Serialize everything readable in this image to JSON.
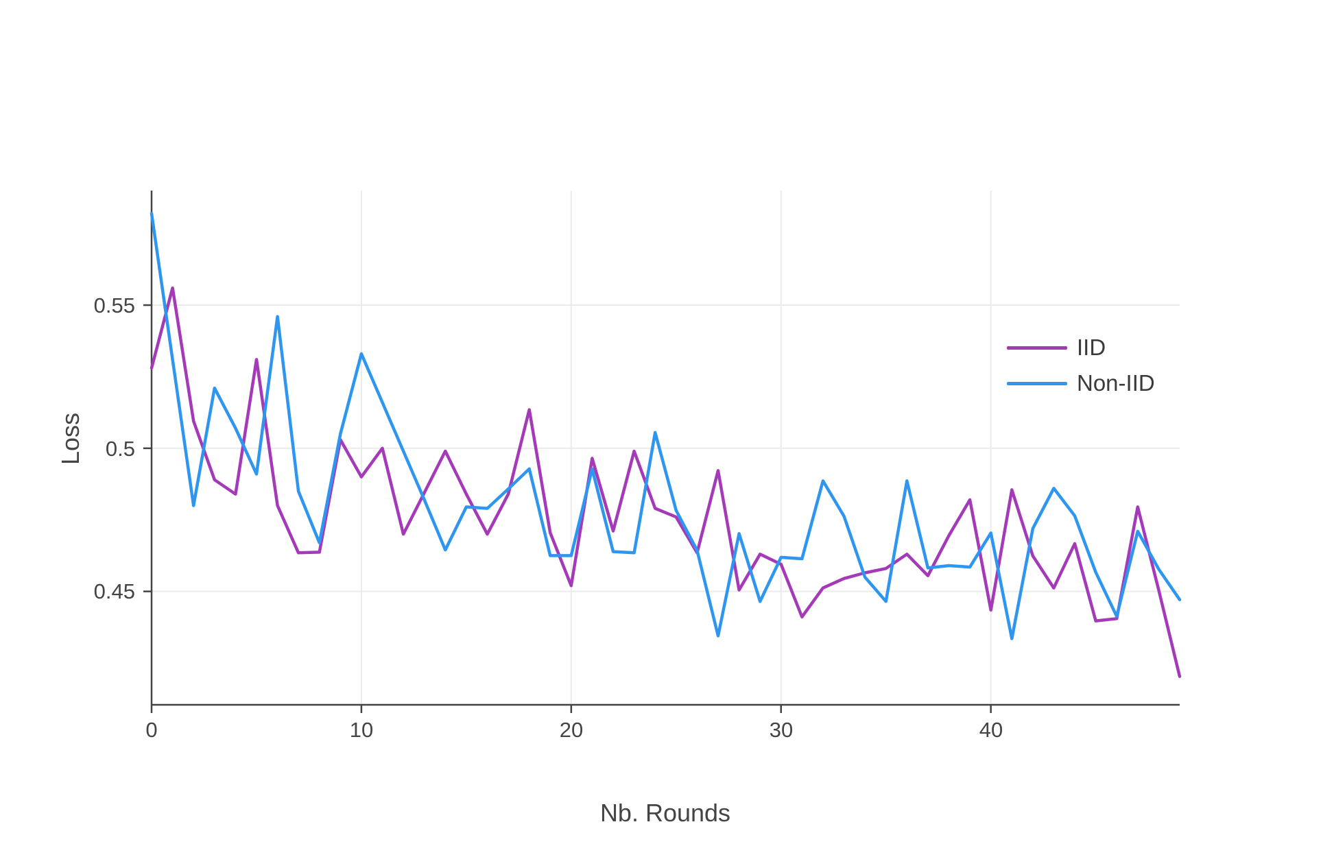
{
  "figure": {
    "xlabel": "Nb. Rounds",
    "ylabel": "Loss",
    "x_ticks": [
      "0",
      "10",
      "20",
      "30",
      "40"
    ],
    "y_ticks": [
      "0.55",
      "0.5",
      "0.45"
    ],
    "legend": [
      {
        "label": "IID",
        "color": "#a43ab8"
      },
      {
        "label": "Non-IID",
        "color": "#2f96f0"
      }
    ]
  },
  "chart_data": {
    "type": "line",
    "title": "",
    "xlabel": "Nb. Rounds",
    "ylabel": "Loss",
    "x_range": [
      0,
      49
    ],
    "y_range": [
      0.4104,
      0.59
    ],
    "x_tick_values": [
      0,
      10,
      20,
      30,
      40
    ],
    "y_tick_values": [
      0.45,
      0.5,
      0.55
    ],
    "grid": true,
    "legend_position": "right-center",
    "colors": {
      "grid": "#ebebeb",
      "axis": "#444444"
    },
    "x": [
      0,
      1,
      2,
      3,
      4,
      5,
      6,
      7,
      8,
      9,
      10,
      11,
      12,
      13,
      14,
      15,
      16,
      17,
      18,
      19,
      20,
      21,
      22,
      23,
      24,
      25,
      26,
      27,
      28,
      29,
      30,
      31,
      32,
      33,
      34,
      35,
      36,
      37,
      38,
      39,
      40,
      41,
      42,
      43,
      44,
      45,
      46,
      47,
      48,
      49
    ],
    "series": [
      {
        "name": "IID",
        "color": "#a43ab8",
        "values": [
          0.528,
          0.556,
          0.5095,
          0.489,
          0.484,
          0.531,
          0.48,
          0.4635,
          0.4637,
          0.503,
          0.49,
          0.5,
          0.47,
          0.4845,
          0.499,
          0.484,
          0.47,
          0.484,
          0.5135,
          0.4705,
          0.452,
          0.4965,
          0.4711,
          0.499,
          0.479,
          0.476,
          0.4635,
          0.4922,
          0.4505,
          0.463,
          0.4595,
          0.4411,
          0.4512,
          0.4545,
          0.4565,
          0.458,
          0.463,
          0.4555,
          0.4695,
          0.482,
          0.4435,
          0.4855,
          0.4624,
          0.4512,
          0.4667,
          0.4397,
          0.4405,
          0.4795,
          0.4505,
          0.4203
        ]
      },
      {
        "name": "Non-IID",
        "color": "#2f96f0",
        "values": [
          0.582,
          0.531,
          0.48,
          0.521,
          0.507,
          0.491,
          0.546,
          0.485,
          0.467,
          0.505,
          0.533,
          0.516,
          0.499,
          0.482,
          0.4645,
          0.4795,
          0.479,
          0.4858,
          0.4928,
          0.4625,
          0.4625,
          0.4928,
          0.4639,
          0.4635,
          0.5055,
          0.4783,
          0.4643,
          0.4345,
          0.4702,
          0.4465,
          0.4619,
          0.4614,
          0.4886,
          0.4763,
          0.455,
          0.4465,
          0.4886,
          0.4582,
          0.459,
          0.4585,
          0.4704,
          0.4335,
          0.472,
          0.486,
          0.4764,
          0.4567,
          0.4413,
          0.471,
          0.4578,
          0.4471
        ]
      }
    ]
  }
}
